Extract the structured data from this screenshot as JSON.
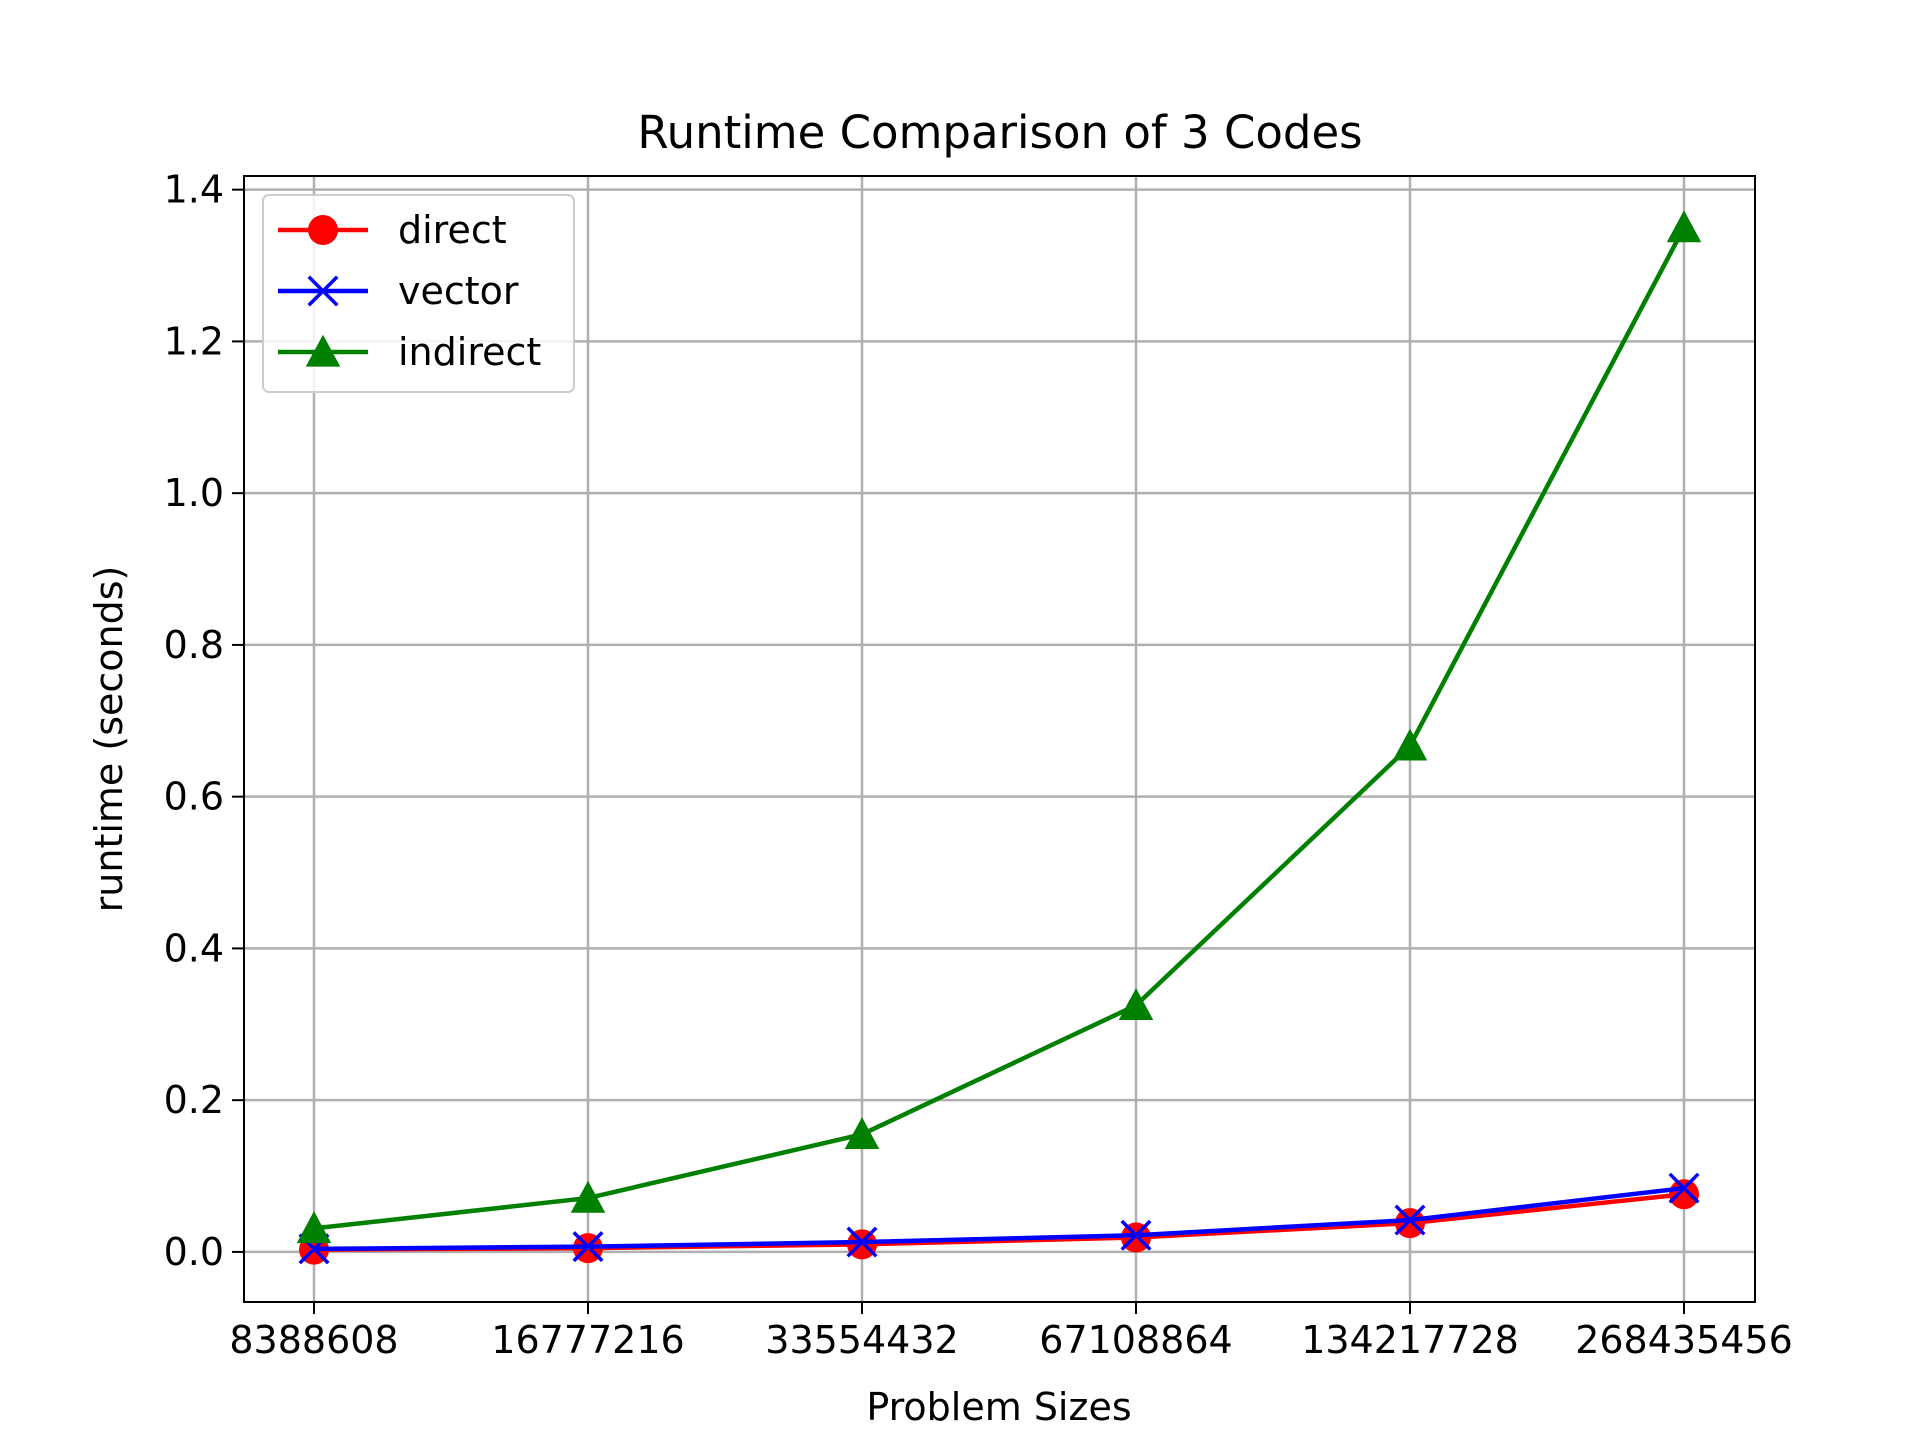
{
  "chart_data": {
    "type": "line",
    "title": "Runtime Comparison of 3 Codes",
    "xlabel": "Problem Sizes",
    "ylabel": "runtime (seconds)",
    "categories": [
      "8388608",
      "16777216",
      "33554432",
      "67108864",
      "134217728",
      "268435456"
    ],
    "ylim": [
      -0.066,
      1.418
    ],
    "yticks": [
      0.0,
      0.2,
      0.4,
      0.6,
      0.8,
      1.0,
      1.2,
      1.4
    ],
    "ytick_labels": [
      "0.0",
      "0.2",
      "0.4",
      "0.6",
      "0.8",
      "1.0",
      "1.2",
      "1.4"
    ],
    "grid": true,
    "legend_position": "top-left",
    "series": [
      {
        "name": "direct",
        "color": "#ff0000",
        "marker": "circle",
        "values": [
          0.003,
          0.005,
          0.01,
          0.019,
          0.038,
          0.076
        ]
      },
      {
        "name": "vector",
        "color": "#0000ff",
        "marker": "x",
        "values": [
          0.004,
          0.007,
          0.013,
          0.022,
          0.042,
          0.084
        ]
      },
      {
        "name": "indirect",
        "color": "#008000",
        "marker": "triangle",
        "values": [
          0.031,
          0.071,
          0.155,
          0.325,
          0.667,
          1.35
        ]
      }
    ]
  }
}
